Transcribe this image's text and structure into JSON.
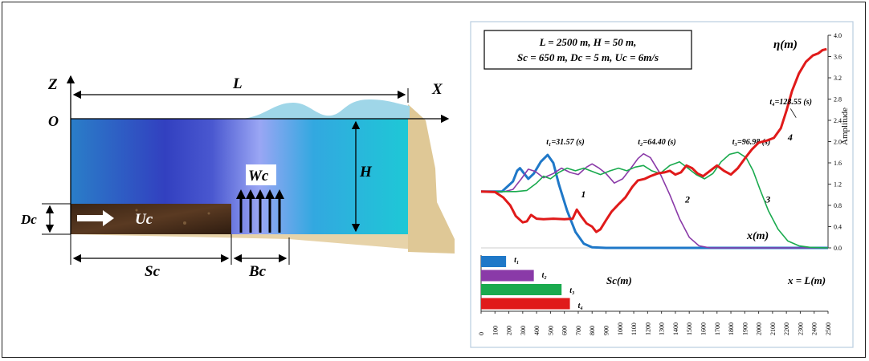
{
  "schematic": {
    "labels": {
      "z_axis": "Z",
      "x_axis": "X",
      "origin": "O",
      "length": "L",
      "depth": "H",
      "slide_thickness": "Dc",
      "slide_velocity": "Uc",
      "vertical_velocity": "Wc",
      "slide_length": "Sc",
      "gap_length": "Bc"
    }
  },
  "chart_data": {
    "type": "line",
    "params_line1": "L = 2500 m,  H = 50 m,",
    "params_line2": "Sc = 650 m,  Dc = 5 m,  Uc = 6m/s",
    "y_title": "η(m)",
    "y_axis_label": "Amplitude",
    "x_title": "x(m)",
    "bar_axis_label": "Sc(m)",
    "right_annotation": "x = L(m)",
    "x_ticks": [
      0,
      100,
      200,
      300,
      400,
      500,
      600,
      700,
      800,
      900,
      1000,
      1100,
      1200,
      1300,
      1400,
      1500,
      1600,
      1700,
      1800,
      1900,
      2000,
      2100,
      2200,
      2300,
      2400,
      2500
    ],
    "y_ticks": [
      "0.0",
      "0.4",
      "0.8",
      "1.2",
      "1.6",
      "2.0",
      "2.4",
      "2.8",
      "3.2",
      "3.6",
      "4.0"
    ],
    "xlim": [
      0,
      2500
    ],
    "ylim": [
      0,
      4.0
    ],
    "series": [
      {
        "curve_label": "1",
        "time_label": "t₁=31.57 (s)",
        "color": "#1f78c8",
        "points": [
          [
            0,
            1.06
          ],
          [
            150,
            1.06
          ],
          [
            230,
            1.25
          ],
          [
            260,
            1.45
          ],
          [
            280,
            1.5
          ],
          [
            310,
            1.4
          ],
          [
            340,
            1.3
          ],
          [
            380,
            1.4
          ],
          [
            430,
            1.62
          ],
          [
            480,
            1.75
          ],
          [
            520,
            1.6
          ],
          [
            560,
            1.2
          ],
          [
            620,
            0.7
          ],
          [
            680,
            0.3
          ],
          [
            740,
            0.08
          ],
          [
            800,
            0.01
          ],
          [
            900,
            0
          ],
          [
            2500,
            0
          ]
        ]
      },
      {
        "curve_label": "2",
        "time_label": "t₂=64.40 (s)",
        "color": "#8a3aa8",
        "points": [
          [
            0,
            1.06
          ],
          [
            170,
            1.06
          ],
          [
            230,
            1.1
          ],
          [
            290,
            1.3
          ],
          [
            340,
            1.48
          ],
          [
            390,
            1.44
          ],
          [
            450,
            1.32
          ],
          [
            520,
            1.4
          ],
          [
            580,
            1.5
          ],
          [
            640,
            1.42
          ],
          [
            700,
            1.38
          ],
          [
            760,
            1.52
          ],
          [
            800,
            1.58
          ],
          [
            850,
            1.5
          ],
          [
            900,
            1.4
          ],
          [
            960,
            1.22
          ],
          [
            1020,
            1.3
          ],
          [
            1080,
            1.5
          ],
          [
            1130,
            1.68
          ],
          [
            1170,
            1.77
          ],
          [
            1220,
            1.7
          ],
          [
            1290,
            1.4
          ],
          [
            1360,
            1.0
          ],
          [
            1430,
            0.55
          ],
          [
            1500,
            0.2
          ],
          [
            1570,
            0.04
          ],
          [
            1650,
            0
          ],
          [
            2500,
            0
          ]
        ]
      },
      {
        "curve_label": "3",
        "time_label": "t₃=96.98 (s)",
        "color": "#1aaa4e",
        "points": [
          [
            0,
            1.06
          ],
          [
            250,
            1.06
          ],
          [
            330,
            1.08
          ],
          [
            400,
            1.22
          ],
          [
            450,
            1.35
          ],
          [
            500,
            1.3
          ],
          [
            560,
            1.42
          ],
          [
            620,
            1.5
          ],
          [
            680,
            1.45
          ],
          [
            740,
            1.5
          ],
          [
            800,
            1.44
          ],
          [
            860,
            1.38
          ],
          [
            930,
            1.45
          ],
          [
            990,
            1.5
          ],
          [
            1050,
            1.45
          ],
          [
            1110,
            1.52
          ],
          [
            1170,
            1.55
          ],
          [
            1230,
            1.45
          ],
          [
            1290,
            1.4
          ],
          [
            1360,
            1.55
          ],
          [
            1430,
            1.62
          ],
          [
            1490,
            1.5
          ],
          [
            1550,
            1.38
          ],
          [
            1610,
            1.3
          ],
          [
            1670,
            1.4
          ],
          [
            1730,
            1.62
          ],
          [
            1790,
            1.76
          ],
          [
            1850,
            1.8
          ],
          [
            1910,
            1.7
          ],
          [
            1960,
            1.45
          ],
          [
            2010,
            1.1
          ],
          [
            2070,
            0.7
          ],
          [
            2140,
            0.35
          ],
          [
            2210,
            0.13
          ],
          [
            2290,
            0.04
          ],
          [
            2370,
            0.01
          ],
          [
            2500,
            0
          ]
        ]
      },
      {
        "curve_label": "4",
        "time_label": "t₄=128.55 (s)",
        "color": "#e01a1a",
        "points": [
          [
            0,
            1.06
          ],
          [
            100,
            1.05
          ],
          [
            160,
            0.95
          ],
          [
            210,
            0.8
          ],
          [
            250,
            0.6
          ],
          [
            300,
            0.48
          ],
          [
            330,
            0.5
          ],
          [
            360,
            0.62
          ],
          [
            400,
            0.55
          ],
          [
            450,
            0.54
          ],
          [
            520,
            0.55
          ],
          [
            600,
            0.54
          ],
          [
            660,
            0.55
          ],
          [
            690,
            0.72
          ],
          [
            720,
            0.6
          ],
          [
            760,
            0.46
          ],
          [
            800,
            0.4
          ],
          [
            830,
            0.3
          ],
          [
            860,
            0.35
          ],
          [
            900,
            0.52
          ],
          [
            940,
            0.68
          ],
          [
            990,
            0.82
          ],
          [
            1040,
            0.95
          ],
          [
            1090,
            1.15
          ],
          [
            1130,
            1.27
          ],
          [
            1180,
            1.3
          ],
          [
            1220,
            1.35
          ],
          [
            1270,
            1.4
          ],
          [
            1320,
            1.42
          ],
          [
            1360,
            1.45
          ],
          [
            1400,
            1.38
          ],
          [
            1440,
            1.42
          ],
          [
            1480,
            1.55
          ],
          [
            1520,
            1.5
          ],
          [
            1560,
            1.4
          ],
          [
            1600,
            1.35
          ],
          [
            1650,
            1.45
          ],
          [
            1700,
            1.55
          ],
          [
            1750,
            1.45
          ],
          [
            1800,
            1.38
          ],
          [
            1850,
            1.5
          ],
          [
            1900,
            1.68
          ],
          [
            1950,
            1.85
          ],
          [
            2000,
            1.98
          ],
          [
            2060,
            2.02
          ],
          [
            2110,
            2.07
          ],
          [
            2160,
            2.25
          ],
          [
            2200,
            2.58
          ],
          [
            2240,
            2.95
          ],
          [
            2290,
            3.28
          ],
          [
            2340,
            3.5
          ],
          [
            2390,
            3.62
          ],
          [
            2430,
            3.66
          ],
          [
            2460,
            3.72
          ],
          [
            2490,
            3.74
          ]
        ]
      }
    ],
    "bars": [
      {
        "label": "t₁",
        "value": 180,
        "color": "#1f78c8"
      },
      {
        "label": "t₂",
        "value": 380,
        "color": "#8a3aa8"
      },
      {
        "label": "t₃",
        "value": 580,
        "color": "#1aaa4e"
      },
      {
        "label": "t₄",
        "value": 640,
        "color": "#e01a1a"
      }
    ]
  }
}
